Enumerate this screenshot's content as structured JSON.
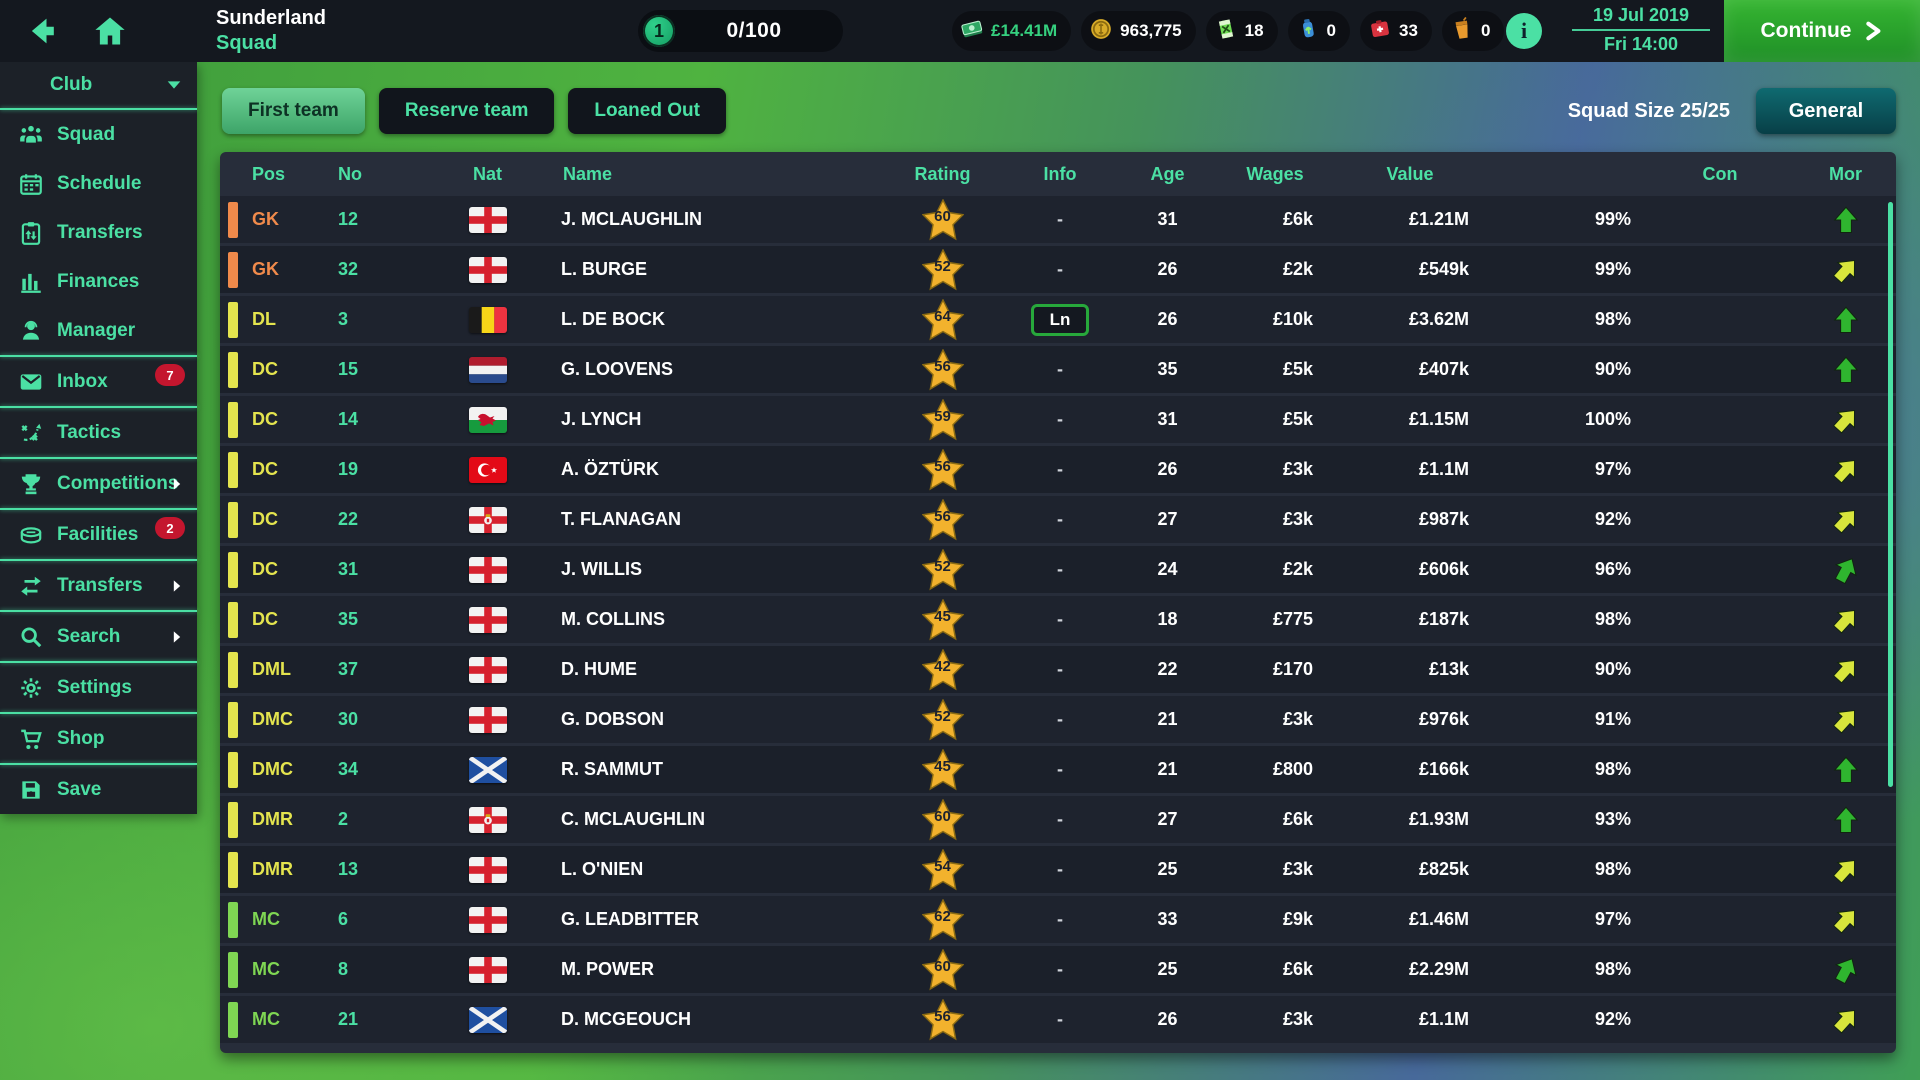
{
  "palette": {
    "accent": "#4BE0A4",
    "money": "#35D07F",
    "badge": "#C4162E",
    "pos-gk": "#F08A4B",
    "pos-def": "#E4E44E",
    "pos-mid": "#7FD653",
    "mor-green": "#2FB52F",
    "mor-yellow": "#D8E53C",
    "star": "#F2B22D"
  },
  "top_bar": {
    "club_name": "Sunderland",
    "page_title": "Squad",
    "level": {
      "value": "1",
      "progress": "0/100"
    },
    "resources": [
      {
        "icon": "cash-icon",
        "value": "£14.41M",
        "money": true
      },
      {
        "icon": "coins-icon",
        "value": "963,775"
      },
      {
        "icon": "energy-drink-icon",
        "value": "18"
      },
      {
        "icon": "water-bottle-icon",
        "value": "0"
      },
      {
        "icon": "medkit-icon",
        "value": "33"
      },
      {
        "icon": "juice-icon",
        "value": "0"
      }
    ],
    "date_line1": "19 Jul 2019",
    "date_line2": "Fri 14:00",
    "continue_label": "Continue"
  },
  "sidebar": {
    "club_label": "Club",
    "items": [
      {
        "label": "Squad",
        "icon": "squad-icon"
      },
      {
        "label": "Schedule",
        "icon": "schedule-icon"
      },
      {
        "label": "Transfers",
        "icon": "transfers-clipboard-icon"
      },
      {
        "label": "Finances",
        "icon": "finances-icon"
      },
      {
        "label": "Manager",
        "icon": "manager-icon"
      },
      {
        "label": "Inbox",
        "icon": "inbox-icon",
        "badge": "7",
        "group_start": true
      },
      {
        "label": "Tactics",
        "icon": "tactics-icon",
        "group_start": true
      },
      {
        "label": "Competitions",
        "icon": "competitions-icon",
        "chevron": true,
        "group_start": true
      },
      {
        "label": "Facilities",
        "icon": "facilities-icon",
        "badge": "2",
        "group_start": true
      },
      {
        "label": "Transfers",
        "icon": "transfers-arrows-icon",
        "chevron": true,
        "group_start": true
      },
      {
        "label": "Search",
        "icon": "search-icon",
        "chevron": true,
        "group_start": true
      },
      {
        "label": "Settings",
        "icon": "settings-icon",
        "group_start": true
      },
      {
        "label": "Shop",
        "icon": "shop-icon",
        "group_start": true
      },
      {
        "label": "Save",
        "icon": "save-icon",
        "group_start": true
      }
    ]
  },
  "main": {
    "tabs": [
      {
        "label": "First team",
        "active": true
      },
      {
        "label": "Reserve team",
        "active": false
      },
      {
        "label": "Loaned Out",
        "active": false
      }
    ],
    "squad_size_label": "Squad Size 25/25",
    "general_label": "General"
  },
  "table": {
    "columns": [
      "Pos",
      "No",
      "Nat",
      "Name",
      "Rating",
      "Info",
      "Age",
      "Wages",
      "Value",
      "Con",
      "Mor"
    ],
    "rows": [
      {
        "pos": "GK",
        "pos_class": "pos-orange",
        "no": "12",
        "nat": "england",
        "name": "J. MCLAUGHLIN",
        "rating": "60",
        "info": "-",
        "age": "31",
        "wages": "£6k",
        "value": "£1.21M",
        "con": 99,
        "con_label": "99%",
        "morale": "green-up"
      },
      {
        "pos": "GK",
        "pos_class": "pos-orange",
        "no": "32",
        "nat": "england",
        "name": "L. BURGE",
        "rating": "52",
        "info": "-",
        "age": "26",
        "wages": "£2k",
        "value": "£549k",
        "con": 99,
        "con_label": "99%",
        "morale": "yellow-diag"
      },
      {
        "pos": "DL",
        "pos_class": "pos-def",
        "no": "3",
        "nat": "belgium",
        "name": "L. DE BOCK",
        "rating": "64",
        "info": "Ln",
        "age": "26",
        "wages": "£10k",
        "value": "£3.62M",
        "con": 98,
        "con_label": "98%",
        "morale": "green-up"
      },
      {
        "pos": "DC",
        "pos_class": "pos-def",
        "no": "15",
        "nat": "netherlands",
        "name": "G. LOOVENS",
        "rating": "56",
        "info": "-",
        "age": "35",
        "wages": "£5k",
        "value": "£407k",
        "con": 90,
        "con_label": "90%",
        "morale": "green-up"
      },
      {
        "pos": "DC",
        "pos_class": "pos-def",
        "no": "14",
        "nat": "wales",
        "name": "J. LYNCH",
        "rating": "59",
        "info": "-",
        "age": "31",
        "wages": "£5k",
        "value": "£1.15M",
        "con": 100,
        "con_label": "100%",
        "morale": "yellow-diag"
      },
      {
        "pos": "DC",
        "pos_class": "pos-def",
        "no": "19",
        "nat": "turkey",
        "name": "A. ÖZTÜRK",
        "rating": "56",
        "info": "-",
        "age": "26",
        "wages": "£3k",
        "value": "£1.1M",
        "con": 97,
        "con_label": "97%",
        "morale": "yellow-diag"
      },
      {
        "pos": "DC",
        "pos_class": "pos-def",
        "no": "22",
        "nat": "northern-ireland",
        "name": "T. FLANAGAN",
        "rating": "56",
        "info": "-",
        "age": "27",
        "wages": "£3k",
        "value": "£987k",
        "con": 92,
        "con_label": "92%",
        "morale": "yellow-diag"
      },
      {
        "pos": "DC",
        "pos_class": "pos-def",
        "no": "31",
        "nat": "england",
        "name": "J. WILLIS",
        "rating": "52",
        "info": "-",
        "age": "24",
        "wages": "£2k",
        "value": "£606k",
        "con": 96,
        "con_label": "96%",
        "morale": "green-diag"
      },
      {
        "pos": "DC",
        "pos_class": "pos-def",
        "no": "35",
        "nat": "england",
        "name": "M. COLLINS",
        "rating": "45",
        "info": "-",
        "age": "18",
        "wages": "£775",
        "value": "£187k",
        "con": 98,
        "con_label": "98%",
        "morale": "yellow-diag"
      },
      {
        "pos": "DML",
        "pos_class": "pos-def",
        "no": "37",
        "nat": "england",
        "name": "D. HUME",
        "rating": "42",
        "info": "-",
        "age": "22",
        "wages": "£170",
        "value": "£13k",
        "con": 90,
        "con_label": "90%",
        "morale": "yellow-diag"
      },
      {
        "pos": "DMC",
        "pos_class": "pos-def",
        "no": "30",
        "nat": "england",
        "name": "G. DOBSON",
        "rating": "52",
        "info": "-",
        "age": "21",
        "wages": "£3k",
        "value": "£976k",
        "con": 91,
        "con_label": "91%",
        "morale": "yellow-diag"
      },
      {
        "pos": "DMC",
        "pos_class": "pos-def",
        "no": "34",
        "nat": "scotland",
        "name": "R. SAMMUT",
        "rating": "45",
        "info": "-",
        "age": "21",
        "wages": "£800",
        "value": "£166k",
        "con": 98,
        "con_label": "98%",
        "morale": "green-up"
      },
      {
        "pos": "DMR",
        "pos_class": "pos-def",
        "no": "2",
        "nat": "northern-ireland",
        "name": "C. MCLAUGHLIN",
        "rating": "60",
        "info": "-",
        "age": "27",
        "wages": "£6k",
        "value": "£1.93M",
        "con": 93,
        "con_label": "93%",
        "morale": "green-up"
      },
      {
        "pos": "DMR",
        "pos_class": "pos-def",
        "no": "13",
        "nat": "england",
        "name": "L. O'NIEN",
        "rating": "54",
        "info": "-",
        "age": "25",
        "wages": "£3k",
        "value": "£825k",
        "con": 98,
        "con_label": "98%",
        "morale": "yellow-diag"
      },
      {
        "pos": "MC",
        "pos_class": "pos-mid",
        "no": "6",
        "nat": "england",
        "name": "G. LEADBITTER",
        "rating": "62",
        "info": "-",
        "age": "33",
        "wages": "£9k",
        "value": "£1.46M",
        "con": 97,
        "con_label": "97%",
        "morale": "yellow-diag"
      },
      {
        "pos": "MC",
        "pos_class": "pos-mid",
        "no": "8",
        "nat": "england",
        "name": "M. POWER",
        "rating": "60",
        "info": "-",
        "age": "25",
        "wages": "£6k",
        "value": "£2.29M",
        "con": 98,
        "con_label": "98%",
        "morale": "green-diag"
      },
      {
        "pos": "MC",
        "pos_class": "pos-mid",
        "no": "21",
        "nat": "scotland",
        "name": "D. MCGEOUCH",
        "rating": "56",
        "info": "-",
        "age": "26",
        "wages": "£3k",
        "value": "£1.1M",
        "con": 92,
        "con_label": "92%",
        "morale": "yellow-diag"
      }
    ]
  }
}
